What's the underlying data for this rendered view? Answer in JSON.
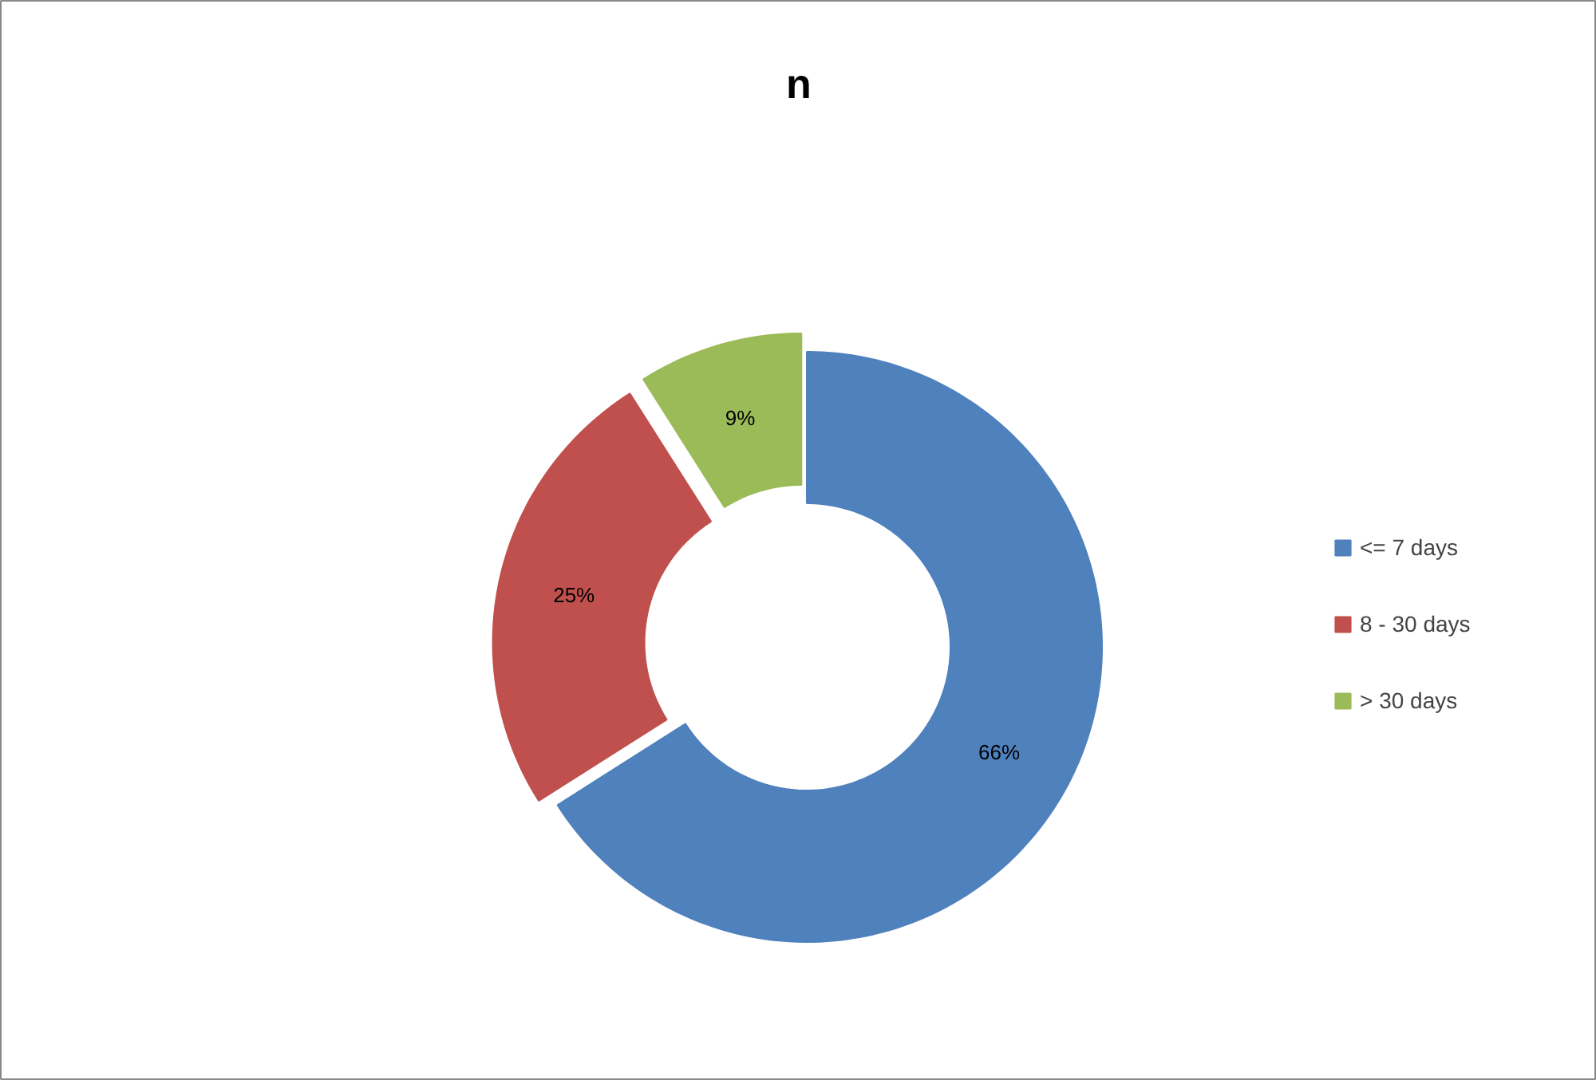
{
  "chart_data": {
    "type": "donut",
    "title": "n",
    "categories": [
      "<= 7 days",
      "8 - 30 days",
      "> 30 days"
    ],
    "values": [
      66,
      25,
      9
    ],
    "colors": [
      "#4f81bd",
      "#c0504d",
      "#9bbb59"
    ],
    "value_labels": [
      "66%",
      "25%",
      "9%"
    ],
    "legend": "right"
  }
}
